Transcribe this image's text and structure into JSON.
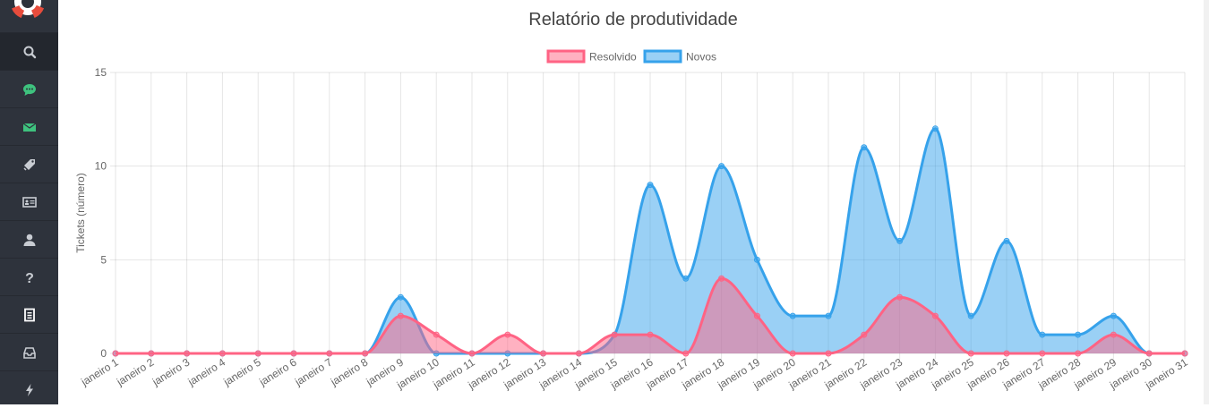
{
  "sidebar": {
    "items": [
      {
        "icon": "search-icon",
        "color": "#c8ccd2",
        "active": true
      },
      {
        "icon": "chat-icon",
        "color": "#3ec27e"
      },
      {
        "icon": "envelope-icon",
        "color": "#3ec27e"
      },
      {
        "icon": "tag-icon",
        "color": "#c8ccd2"
      },
      {
        "icon": "id-card-icon",
        "color": "#c8ccd2"
      },
      {
        "icon": "user-icon",
        "color": "#c8ccd2"
      },
      {
        "icon": "question-icon",
        "color": "#c8ccd2"
      },
      {
        "icon": "document-icon",
        "color": "#ffffff"
      },
      {
        "icon": "inbox-icon",
        "color": "#c8ccd2"
      },
      {
        "icon": "bolt-icon",
        "color": "#c8ccd2"
      }
    ]
  },
  "chart_data": {
    "type": "area",
    "title": "Relatório de produtividade",
    "ylabel": "Tickets (número)",
    "xlabel": "",
    "ylim": [
      0,
      15
    ],
    "yticks": [
      0,
      5,
      10,
      15
    ],
    "grid": true,
    "legend_position": "top-center",
    "categories": [
      "janeiro 1",
      "janeiro 2",
      "janeiro 3",
      "janeiro 4",
      "janeiro 5",
      "janeiro 6",
      "janeiro 7",
      "janeiro 8",
      "janeiro 9",
      "janeiro 10",
      "janeiro 11",
      "janeiro 12",
      "janeiro 13",
      "janeiro 14",
      "janeiro 15",
      "janeiro 16",
      "janeiro 17",
      "janeiro 18",
      "janeiro 19",
      "janeiro 20",
      "janeiro 21",
      "janeiro 22",
      "janeiro 23",
      "janeiro 24",
      "janeiro 25",
      "janeiro 26",
      "janeiro 27",
      "janeiro 28",
      "janeiro 29",
      "janeiro 30",
      "janeiro 31"
    ],
    "series": [
      {
        "name": "Novos",
        "color": "#36a2eb",
        "fill": "rgba(54,162,235,0.5)",
        "values": [
          0,
          0,
          0,
          0,
          0,
          0,
          0,
          0,
          3,
          0,
          0,
          0,
          0,
          0,
          1,
          9,
          4,
          10,
          5,
          2,
          2,
          11,
          6,
          12,
          2,
          6,
          1,
          1,
          2,
          0,
          0
        ]
      },
      {
        "name": "Resolvido",
        "color": "#ff6384",
        "fill": "rgba(255,99,132,0.5)",
        "values": [
          0,
          0,
          0,
          0,
          0,
          0,
          0,
          0,
          2,
          1,
          0,
          1,
          0,
          0,
          1,
          1,
          0,
          4,
          2,
          0,
          0,
          1,
          3,
          2,
          0,
          0,
          0,
          0,
          1,
          0,
          0
        ]
      }
    ],
    "legend": [
      {
        "name": "Resolvido",
        "color": "#ff6384",
        "fill": "rgba(255,99,132,0.5)"
      },
      {
        "name": "Novos",
        "color": "#36a2eb",
        "fill": "rgba(54,162,235,0.5)"
      }
    ]
  }
}
